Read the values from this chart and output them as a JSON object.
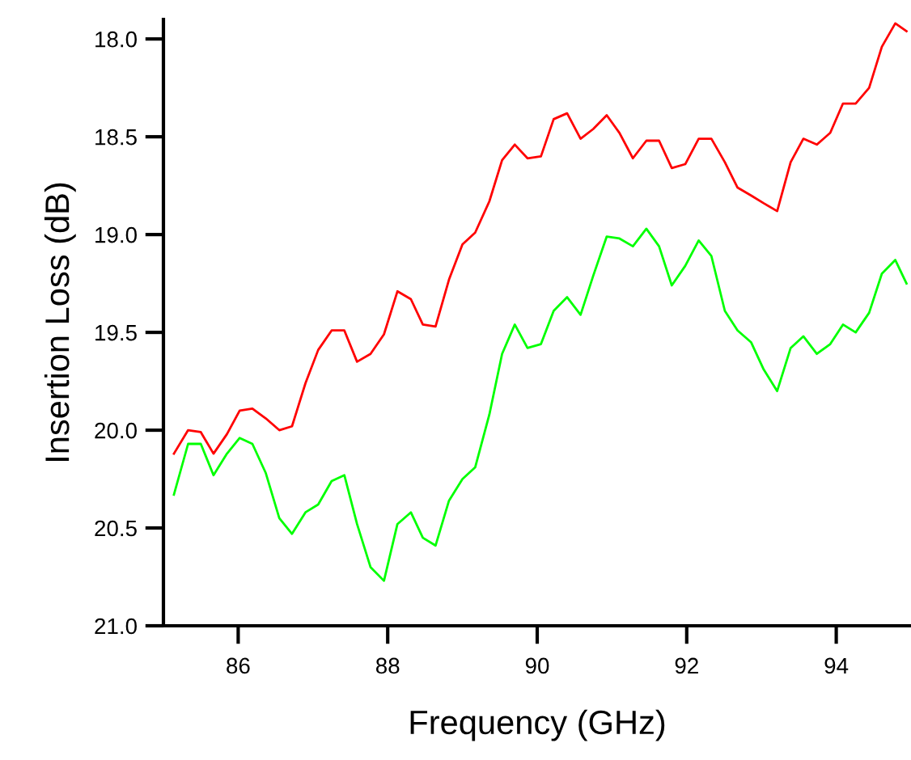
{
  "chart_data": {
    "type": "line",
    "xlabel": "Frequency (GHz)",
    "ylabel": "Insertion Loss (dB)",
    "x": [
      85.14,
      85.33,
      85.5,
      85.67,
      85.85,
      86.02,
      86.19,
      86.37,
      86.55,
      86.72,
      86.9,
      87.07,
      87.25,
      87.42,
      87.59,
      87.77,
      87.95,
      88.13,
      88.31,
      88.47,
      88.64,
      88.82,
      89.0,
      89.17,
      89.36,
      89.53,
      89.7,
      89.87,
      90.05,
      90.22,
      90.4,
      90.58,
      90.75,
      90.93,
      91.1,
      91.28,
      91.46,
      91.63,
      91.8,
      91.98,
      92.16,
      92.33,
      92.51,
      92.68,
      92.86,
      93.03,
      93.21,
      93.39,
      93.56,
      93.74,
      93.92,
      94.09,
      94.26,
      94.44,
      94.61,
      94.79,
      94.94
    ],
    "series": [
      {
        "color": "#ff0000",
        "values": [
          20.12,
          20.0,
          20.01,
          20.12,
          20.02,
          19.9,
          19.89,
          19.94,
          20.0,
          19.98,
          19.76,
          19.59,
          19.49,
          19.49,
          19.65,
          19.61,
          19.51,
          19.29,
          19.33,
          19.46,
          19.47,
          19.23,
          19.05,
          18.99,
          18.83,
          18.62,
          18.54,
          18.61,
          18.6,
          18.41,
          18.38,
          18.51,
          18.46,
          18.39,
          18.48,
          18.61,
          18.52,
          18.52,
          18.66,
          18.64,
          18.51,
          18.51,
          18.63,
          18.76,
          18.8,
          18.84,
          18.88,
          18.63,
          18.51,
          18.54,
          18.48,
          18.33,
          18.33,
          18.25,
          18.04,
          17.92,
          17.96
        ]
      },
      {
        "color": "#00ff00",
        "values": [
          20.33,
          20.07,
          20.07,
          20.23,
          20.12,
          20.04,
          20.07,
          20.22,
          20.45,
          20.53,
          20.42,
          20.38,
          20.26,
          20.23,
          20.48,
          20.7,
          20.77,
          20.48,
          20.42,
          20.55,
          20.59,
          20.36,
          20.25,
          20.19,
          19.92,
          19.61,
          19.46,
          19.58,
          19.56,
          19.39,
          19.32,
          19.41,
          19.21,
          19.01,
          19.02,
          19.06,
          18.97,
          19.06,
          19.26,
          19.16,
          19.03,
          19.11,
          19.39,
          19.49,
          19.55,
          19.69,
          19.8,
          19.58,
          19.52,
          19.61,
          19.56,
          19.46,
          19.5,
          19.4,
          19.2,
          19.13,
          19.25
        ]
      }
    ],
    "xlim": [
      85,
      95
    ],
    "xticks": [
      86,
      88,
      90,
      92,
      94
    ],
    "ylim": [
      21.0,
      17.9
    ],
    "yticks": [
      {
        "value": 18,
        "label": "18.0"
      },
      {
        "value": 18.5,
        "label": "18.5"
      },
      {
        "value": 19,
        "label": "19.0"
      },
      {
        "value": 19.5,
        "label": "19.5"
      },
      {
        "value": 20,
        "label": "20.0"
      },
      {
        "value": 20.5,
        "label": "20.5"
      },
      {
        "value": 21,
        "label": "21.0"
      }
    ],
    "grid": false,
    "line_style": "solid",
    "marker": "none"
  }
}
